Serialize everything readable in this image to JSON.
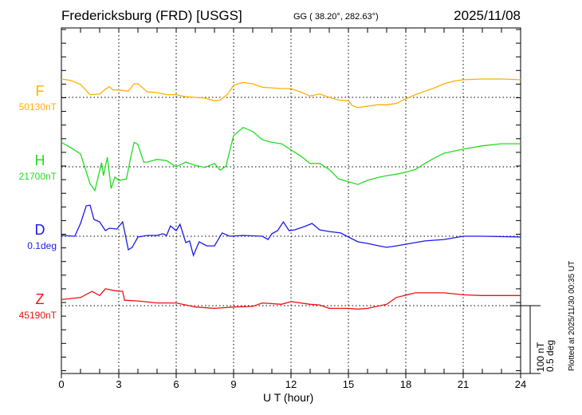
{
  "header": {
    "station": "Fredericksburg (FRD)  [USGS]",
    "coords": "GG ( 38.20°, 282.63°)",
    "date": "2025/11/08"
  },
  "footer_note": "Plotted at 2025/11/30 00:35 UT",
  "chart_data": {
    "type": "line",
    "xlabel": "U T (hour)",
    "xlim": [
      0,
      24
    ],
    "x_ticks": [
      "0",
      "3",
      "6",
      "9",
      "12",
      "15",
      "18",
      "21",
      "24"
    ],
    "grid": "dotted vertical every 3 h, dotted baseline per component",
    "scale_bar": {
      "line1": "100 nT",
      "line2": "0.5 deg",
      "nT": 100,
      "deg": 0.5
    },
    "series": [
      {
        "name": "F",
        "baseline_label": "50130nT",
        "unit": "nT",
        "color": "#ffb000",
        "x": [
          0,
          0.5,
          1,
          1.5,
          2,
          2.3,
          2.5,
          2.7,
          3,
          3.5,
          3.8,
          4,
          4.5,
          5,
          5.5,
          6,
          6.5,
          7,
          7.5,
          8,
          8.3,
          8.7,
          9,
          9.5,
          10,
          10.5,
          11,
          11.5,
          12,
          12.5,
          13,
          13.5,
          14,
          14.5,
          15,
          15.2,
          15.5,
          16,
          16.5,
          17,
          17.5,
          18,
          18.5,
          19,
          19.5,
          20,
          20.5,
          21,
          22,
          23,
          24
        ],
        "y": [
          27,
          25,
          19,
          4,
          5,
          12,
          16,
          11,
          11,
          9,
          20,
          20,
          8,
          7,
          4,
          4,
          1,
          0,
          -1,
          -5,
          -4,
          5,
          18,
          22,
          20,
          15,
          14,
          13,
          13,
          8,
          2,
          5,
          0,
          -4,
          -5,
          -12,
          -15,
          -13,
          -11,
          -11,
          -9,
          -2,
          4,
          9,
          14,
          20,
          24,
          26,
          27,
          27,
          26
        ]
      },
      {
        "name": "H",
        "baseline_label": "21700nT",
        "unit": "nT",
        "color": "#22dd22",
        "x": [
          0,
          0.5,
          1,
          1.5,
          1.75,
          2.1,
          2.2,
          2.4,
          2.6,
          2.8,
          3,
          3.4,
          3.6,
          3.8,
          4,
          4.3,
          4.5,
          5,
          5.5,
          6,
          6.5,
          7,
          7.5,
          8,
          8.3,
          8.6,
          9,
          9.5,
          10,
          10.5,
          11,
          11.5,
          12,
          12.5,
          13,
          13.5,
          14,
          14.5,
          15,
          15.5,
          16,
          16.5,
          17,
          17.5,
          18,
          18.5,
          19,
          19.5,
          20,
          21,
          22,
          23,
          24
        ],
        "y": [
          36,
          28,
          19,
          -25,
          -35,
          6,
          -13,
          14,
          -32,
          -15,
          -20,
          -18,
          11,
          36,
          33,
          7,
          7,
          11,
          9,
          0,
          7,
          2,
          -1,
          5,
          -5,
          1,
          46,
          58,
          52,
          40,
          36,
          34,
          25,
          16,
          5,
          5,
          -4,
          -18,
          -22,
          -26,
          -20,
          -16,
          -13,
          -11,
          -8,
          -4,
          5,
          13,
          20,
          26,
          31,
          34,
          34
        ]
      },
      {
        "name": "D",
        "baseline_label": "0.1deg",
        "unit": "deg",
        "color": "#1a1aee",
        "x": [
          0,
          0.7,
          1,
          1.3,
          1.5,
          1.7,
          2,
          2.3,
          2.5,
          2.9,
          3.2,
          3.5,
          3.7,
          4,
          4.5,
          5,
          5.3,
          5.5,
          5.7,
          6,
          6.2,
          6.5,
          6.7,
          6.9,
          7.2,
          7.6,
          8,
          8.4,
          8.8,
          9.5,
          10.5,
          10.8,
          11,
          11.3,
          11.6,
          11.9,
          12.2,
          12.7,
          13.1,
          13.5,
          14,
          14.6,
          15,
          15.5,
          16,
          16.6,
          17,
          17.5,
          18,
          19,
          20,
          21,
          22,
          24
        ],
        "y": [
          0.006,
          0,
          0.094,
          0.224,
          0.229,
          0.124,
          0.106,
          0.041,
          0.059,
          0.053,
          0.106,
          -0.1,
          -0.082,
          -0.006,
          0.006,
          0.006,
          0.018,
          0.006,
          0.076,
          0.041,
          0.088,
          -0.047,
          -0.035,
          -0.141,
          -0.041,
          -0.071,
          -0.071,
          0.024,
          0,
          0.006,
          0,
          -0.024,
          0.018,
          0.041,
          0.106,
          0.041,
          0.047,
          0.071,
          0.094,
          0.047,
          0.035,
          0.024,
          -0.006,
          -0.041,
          -0.053,
          -0.071,
          -0.082,
          -0.071,
          -0.059,
          -0.035,
          -0.024,
          0,
          0,
          -0.006
        ]
      },
      {
        "name": "Z",
        "baseline_label": "45190nT",
        "unit": "nT",
        "color": "#ee1111",
        "x": [
          0,
          1,
          1.6,
          2,
          2.3,
          2.8,
          3.2,
          3.3,
          4,
          5,
          6,
          6.5,
          7,
          8,
          9,
          10,
          10.5,
          11.5,
          12,
          13,
          13.5,
          14,
          15,
          15.5,
          16,
          17,
          17.5,
          18.5,
          19,
          20,
          21,
          22,
          24
        ],
        "y": [
          9,
          12,
          21,
          15,
          25,
          22,
          21,
          8,
          7,
          4,
          4,
          1,
          -2,
          -4,
          -2,
          -1,
          4,
          2,
          6,
          2,
          1,
          -4,
          -4,
          -5,
          -4,
          2,
          12,
          19,
          19,
          19,
          16,
          15,
          15
        ]
      }
    ]
  }
}
